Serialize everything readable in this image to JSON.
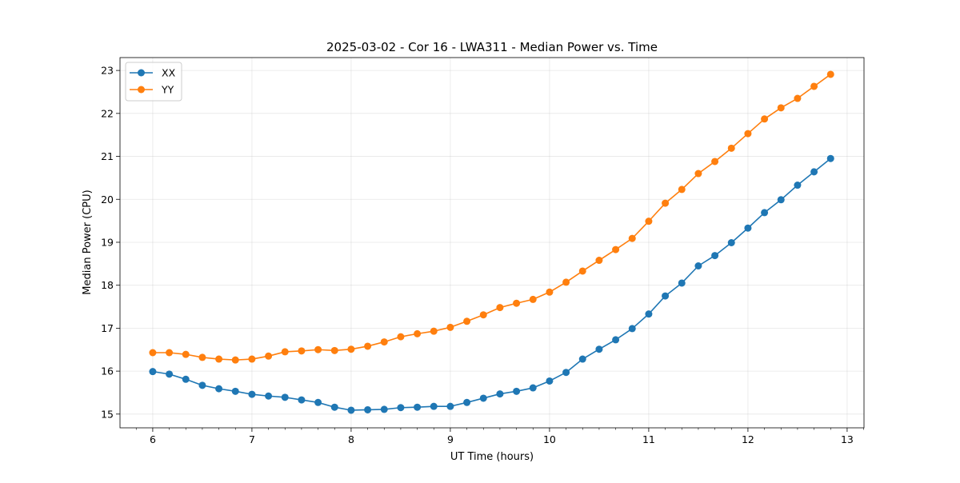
{
  "chart_data": {
    "type": "line",
    "title": "2025-03-02 - Cor 16 - LWA311 - Median Power vs. Time",
    "xlabel": "UT Time (hours)",
    "ylabel": "Median Power (CPU)",
    "xlim": [
      5.67,
      13.17
    ],
    "ylim": [
      14.68,
      23.3
    ],
    "xticks": [
      6,
      7,
      8,
      9,
      10,
      11,
      12,
      13
    ],
    "yticks": [
      15,
      16,
      17,
      18,
      19,
      20,
      21,
      22,
      23
    ],
    "xtick_labels": [
      "6",
      "7",
      "8",
      "9",
      "10",
      "11",
      "12",
      "13"
    ],
    "ytick_labels": [
      "15",
      "16",
      "17",
      "18",
      "19",
      "20",
      "21",
      "22",
      "23"
    ],
    "grid": true,
    "legend_position": "top-left",
    "x": [
      6.0,
      6.1667,
      6.3333,
      6.5,
      6.6667,
      6.8333,
      7.0,
      7.1667,
      7.3333,
      7.5,
      7.6667,
      7.8333,
      8.0,
      8.1667,
      8.3333,
      8.5,
      8.6667,
      8.8333,
      9.0,
      9.1667,
      9.3333,
      9.5,
      9.6667,
      9.8333,
      10.0,
      10.1667,
      10.3333,
      10.5,
      10.6667,
      10.8333,
      11.0,
      11.1667,
      11.3333,
      11.5,
      11.6667,
      11.8333,
      12.0,
      12.1667,
      12.3333,
      12.5,
      12.6667,
      12.8333
    ],
    "series": [
      {
        "name": "XX",
        "color": "#1f77b4",
        "values": [
          15.99,
          15.93,
          15.81,
          15.67,
          15.59,
          15.53,
          15.46,
          15.42,
          15.39,
          15.33,
          15.27,
          15.16,
          15.09,
          15.1,
          15.11,
          15.15,
          15.16,
          15.18,
          15.18,
          15.27,
          15.37,
          15.47,
          15.53,
          15.61,
          15.77,
          15.97,
          16.28,
          16.51,
          16.73,
          16.99,
          17.33,
          17.75,
          18.05,
          18.45,
          18.69,
          18.99,
          19.33,
          19.69,
          19.99,
          20.33,
          20.64,
          20.95
        ]
      },
      {
        "name": "YY",
        "color": "#ff7f0e",
        "values": [
          16.43,
          16.43,
          16.39,
          16.32,
          16.28,
          16.26,
          16.28,
          16.35,
          16.45,
          16.47,
          16.5,
          16.48,
          16.51,
          16.58,
          16.68,
          16.8,
          16.87,
          16.93,
          17.02,
          17.16,
          17.31,
          17.48,
          17.58,
          17.67,
          17.84,
          18.07,
          18.33,
          18.58,
          18.83,
          19.09,
          19.49,
          19.91,
          20.23,
          20.6,
          20.88,
          21.19,
          21.53,
          21.87,
          22.13,
          22.35,
          22.63,
          22.91
        ]
      }
    ]
  }
}
